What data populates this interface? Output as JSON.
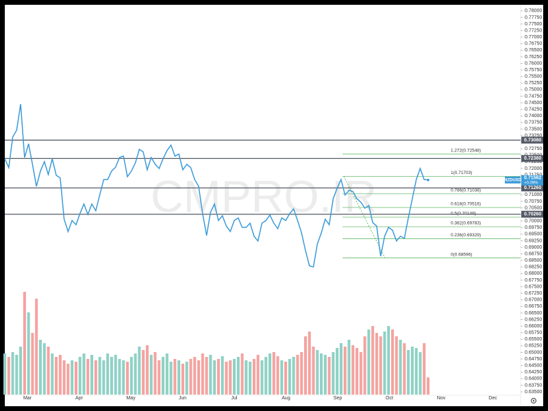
{
  "chart_data": {
    "type": "line",
    "symbol": "NZDUSD",
    "last_price_label": "0.71562",
    "change_label": "+0.09%",
    "watermark": "CMPRO.IR",
    "color": "#3a9ad9",
    "up_color": "#8fd1c5",
    "down_color": "#f4a3a0",
    "x_labels": [
      "Mar",
      "Apr",
      "May",
      "Jun",
      "Jul",
      "Aug",
      "Sep",
      "Oct",
      "Nov",
      "Dec"
    ],
    "values": [
      0.7237,
      0.7203,
      0.732,
      0.7346,
      0.7445,
      0.7242,
      0.7294,
      0.7216,
      0.7132,
      0.719,
      0.7226,
      0.7177,
      0.7237,
      0.7174,
      0.7164,
      0.7007,
      0.696,
      0.7002,
      0.6986,
      0.7028,
      0.7065,
      0.7025,
      0.7065,
      0.7039,
      0.7099,
      0.7158,
      0.7158,
      0.719,
      0.7205,
      0.7242,
      0.7247,
      0.7169,
      0.719,
      0.7221,
      0.7273,
      0.7263,
      0.7195,
      0.7242,
      0.7216,
      0.72,
      0.7237,
      0.7268,
      0.7289,
      0.7247,
      0.7255,
      0.7195,
      0.7216,
      0.7203,
      0.7158,
      0.7132,
      0.7028,
      0.6945,
      0.7033,
      0.7065,
      0.7002,
      0.702,
      0.6981,
      0.696,
      0.7002,
      0.7012,
      0.6976,
      0.6976,
      0.6992,
      0.6942,
      0.6924,
      0.6992,
      0.7002,
      0.7023,
      0.6992,
      0.6971,
      0.7012,
      0.7002,
      0.7028,
      0.7046,
      0.7002,
      0.6955,
      0.6887,
      0.683,
      0.6825,
      0.6913,
      0.6955,
      0.7007,
      0.6986,
      0.7085,
      0.7125,
      0.7158,
      0.7099,
      0.7117,
      0.7112,
      0.7085,
      0.7072,
      0.7049,
      0.7059,
      0.6994,
      0.6981,
      0.6866,
      0.6942,
      0.6976,
      0.6965,
      0.6924,
      0.6942,
      0.6934,
      0.7012,
      0.7085,
      0.7158,
      0.72,
      0.7158,
      0.71562
    ],
    "volume": [
      60,
      55,
      62,
      58,
      70,
      150,
      120,
      90,
      140,
      80,
      75,
      70,
      60,
      55,
      58,
      50,
      45,
      50,
      48,
      55,
      60,
      52,
      58,
      50,
      55,
      50,
      60,
      55,
      58,
      52,
      50,
      48,
      55,
      60,
      70,
      65,
      72,
      58,
      62,
      50,
      55,
      60,
      48,
      52,
      50,
      45,
      48,
      52,
      55,
      50,
      60,
      55,
      58,
      50,
      52,
      56,
      48,
      50,
      52,
      55,
      60,
      50,
      48,
      52,
      58,
      50,
      55,
      60,
      62,
      56,
      50,
      48,
      52,
      55,
      58,
      62,
      85,
      92,
      70,
      65,
      60,
      58,
      55,
      62,
      68,
      75,
      70,
      80,
      72,
      68,
      62,
      85,
      95,
      100,
      90,
      85,
      92,
      100,
      95,
      85,
      80,
      75,
      65,
      70,
      68,
      62,
      75,
      25
    ],
    "ylim": [
      0.6337,
      0.7823
    ],
    "yticks": [
      {
        "value": 0.78,
        "label": "0.78000"
      },
      {
        "value": 0.7775,
        "label": "0.77750"
      },
      {
        "value": 0.775,
        "label": "0.77500"
      },
      {
        "value": 0.7725,
        "label": "0.77250"
      },
      {
        "value": 0.77,
        "label": "0.77000"
      },
      {
        "value": 0.7675,
        "label": "0.76750"
      },
      {
        "value": 0.765,
        "label": "0.76500"
      },
      {
        "value": 0.7625,
        "label": "0.76250"
      },
      {
        "value": 0.76,
        "label": "0.76000"
      },
      {
        "value": 0.7575,
        "label": "0.75750"
      },
      {
        "value": 0.755,
        "label": "0.75500"
      },
      {
        "value": 0.7525,
        "label": "0.75250"
      },
      {
        "value": 0.75,
        "label": "0.75000"
      },
      {
        "value": 0.7475,
        "label": "0.74750"
      },
      {
        "value": 0.745,
        "label": "0.74500"
      },
      {
        "value": 0.7425,
        "label": "0.74250"
      },
      {
        "value": 0.74,
        "label": "0.74000"
      },
      {
        "value": 0.7375,
        "label": "0.73750"
      },
      {
        "value": 0.735,
        "label": "0.73500"
      },
      {
        "value": 0.7325,
        "label": "0.73250"
      },
      {
        "value": 0.73,
        "label": "0.73000"
      },
      {
        "value": 0.7275,
        "label": "0.72750"
      },
      {
        "value": 0.725,
        "label": "0.72500"
      },
      {
        "value": 0.7225,
        "label": "0.72250"
      },
      {
        "value": 0.72,
        "label": "0.72000"
      },
      {
        "value": 0.7175,
        "label": "0.71750"
      },
      {
        "value": 0.715,
        "label": "0.71500"
      },
      {
        "value": 0.7125,
        "label": "0.71250"
      },
      {
        "value": 0.71,
        "label": "0.71000"
      },
      {
        "value": 0.7075,
        "label": "0.70750"
      },
      {
        "value": 0.705,
        "label": "0.70500"
      },
      {
        "value": 0.7025,
        "label": "0.70250"
      },
      {
        "value": 0.7,
        "label": "0.70000"
      },
      {
        "value": 0.6975,
        "label": "0.69750"
      },
      {
        "value": 0.695,
        "label": "0.69500"
      },
      {
        "value": 0.6925,
        "label": "0.69250"
      },
      {
        "value": 0.69,
        "label": "0.69000"
      },
      {
        "value": 0.6875,
        "label": "0.68750"
      },
      {
        "value": 0.685,
        "label": "0.68500"
      },
      {
        "value": 0.6825,
        "label": "0.68250"
      },
      {
        "value": 0.68,
        "label": "0.68000"
      },
      {
        "value": 0.6775,
        "label": "0.67750"
      },
      {
        "value": 0.675,
        "label": "0.67500"
      },
      {
        "value": 0.6725,
        "label": "0.67250"
      },
      {
        "value": 0.67,
        "label": "0.67000"
      },
      {
        "value": 0.6675,
        "label": "0.66750"
      },
      {
        "value": 0.665,
        "label": "0.66500"
      },
      {
        "value": 0.6625,
        "label": "0.66250"
      },
      {
        "value": 0.66,
        "label": "0.66000"
      },
      {
        "value": 0.6575,
        "label": "0.65750"
      },
      {
        "value": 0.655,
        "label": "0.65500"
      },
      {
        "value": 0.6525,
        "label": "0.65250"
      },
      {
        "value": 0.65,
        "label": "0.65000"
      },
      {
        "value": 0.6475,
        "label": "0.64750"
      },
      {
        "value": 0.645,
        "label": "0.64500"
      },
      {
        "value": 0.6425,
        "label": "0.64250"
      },
      {
        "value": 0.64,
        "label": "0.64000"
      },
      {
        "value": 0.6375,
        "label": "0.63750"
      },
      {
        "value": 0.635,
        "label": "0.63500"
      }
    ],
    "levels": [
      {
        "value": 0.7308,
        "label": "0.73080"
      },
      {
        "value": 0.7238,
        "label": "0.72380"
      },
      {
        "value": 0.7126,
        "label": "0.71260"
      },
      {
        "value": 0.7026,
        "label": "0.70260"
      }
    ],
    "fib_levels": [
      {
        "value": 0.72548,
        "label": "1.272(0.72548)"
      },
      {
        "value": 0.71703,
        "label": "1(0.71703)"
      },
      {
        "value": 0.71038,
        "label": "0.786(0.71038)"
      },
      {
        "value": 0.70516,
        "label": "0.618(0.70516)"
      },
      {
        "value": 0.70149,
        "label": "0.5(0.70149)"
      },
      {
        "value": 0.69783,
        "label": "0.382(0.69783)"
      },
      {
        "value": 0.69329,
        "label": "0.236(0.69329)"
      },
      {
        "value": 0.68596,
        "label": "0(0.68596)"
      }
    ]
  }
}
